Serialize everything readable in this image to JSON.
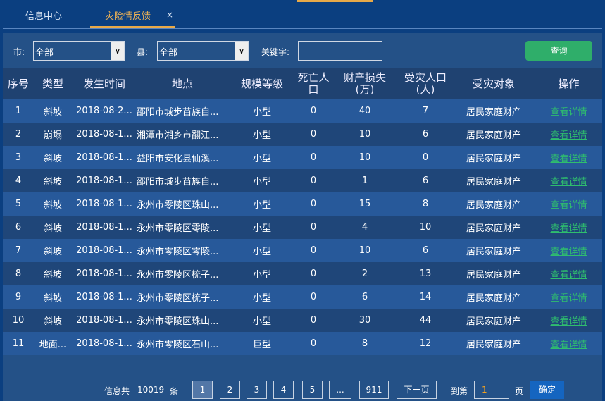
{
  "tabs": [
    {
      "label": "信息中心"
    },
    {
      "label": "灾险情反馈",
      "close": "×"
    }
  ],
  "filter": {
    "city_label": "市:",
    "city_value": "全部",
    "county_label": "县:",
    "county_value": "全部",
    "keyword_label": "关键字:",
    "keyword_value": "",
    "query": "查询"
  },
  "columns": [
    "序号",
    "类型",
    "发生时间",
    "地点",
    "规模等级",
    "死亡人口",
    "财产损失(万)",
    "受灾人口(人)",
    "受灾对象",
    "操作"
  ],
  "rows": [
    [
      "1",
      "斜坡",
      "2018-08-2...",
      "邵阳市城步苗族自...",
      "小型",
      "0",
      "40",
      "7",
      "居民家庭财产",
      "查看详情"
    ],
    [
      "2",
      "崩塌",
      "2018-08-1...",
      "湘潭市湘乡市翻江...",
      "小型",
      "0",
      "10",
      "6",
      "居民家庭财产",
      "查看详情"
    ],
    [
      "3",
      "斜坡",
      "2018-08-1...",
      "益阳市安化县仙溪...",
      "小型",
      "0",
      "10",
      "0",
      "居民家庭财产",
      "查看详情"
    ],
    [
      "4",
      "斜坡",
      "2018-08-1...",
      "邵阳市城步苗族自...",
      "小型",
      "0",
      "1",
      "6",
      "居民家庭财产",
      "查看详情"
    ],
    [
      "5",
      "斜坡",
      "2018-08-1...",
      "永州市零陵区珠山...",
      "小型",
      "0",
      "15",
      "8",
      "居民家庭财产",
      "查看详情"
    ],
    [
      "6",
      "斜坡",
      "2018-08-1...",
      "永州市零陵区零陵...",
      "小型",
      "0",
      "4",
      "10",
      "居民家庭财产",
      "查看详情"
    ],
    [
      "7",
      "斜坡",
      "2018-08-1...",
      "永州市零陵区零陵...",
      "小型",
      "0",
      "10",
      "6",
      "居民家庭财产",
      "查看详情"
    ],
    [
      "8",
      "斜坡",
      "2018-08-1...",
      "永州市零陵区梳子...",
      "小型",
      "0",
      "2",
      "13",
      "居民家庭财产",
      "查看详情"
    ],
    [
      "9",
      "斜坡",
      "2018-08-1...",
      "永州市零陵区梳子...",
      "小型",
      "0",
      "6",
      "14",
      "居民家庭财产",
      "查看详情"
    ],
    [
      "10",
      "斜坡",
      "2018-08-1...",
      "永州市零陵区珠山...",
      "小型",
      "0",
      "30",
      "44",
      "居民家庭财产",
      "查看详情"
    ],
    [
      "11",
      "地面...",
      "2018-08-1...",
      "永州市零陵区石山...",
      "巨型",
      "0",
      "8",
      "12",
      "居民家庭财产",
      "查看详情"
    ]
  ],
  "pager": {
    "total_prefix": "信息共",
    "total": "10019",
    "total_suffix": "条",
    "pages": [
      "1",
      "2",
      "3",
      "4",
      "5",
      "...",
      "911"
    ],
    "next": "下一页",
    "goto_prefix": "到第",
    "goto_value": "1",
    "goto_suffix": "页",
    "confirm": "确定"
  }
}
